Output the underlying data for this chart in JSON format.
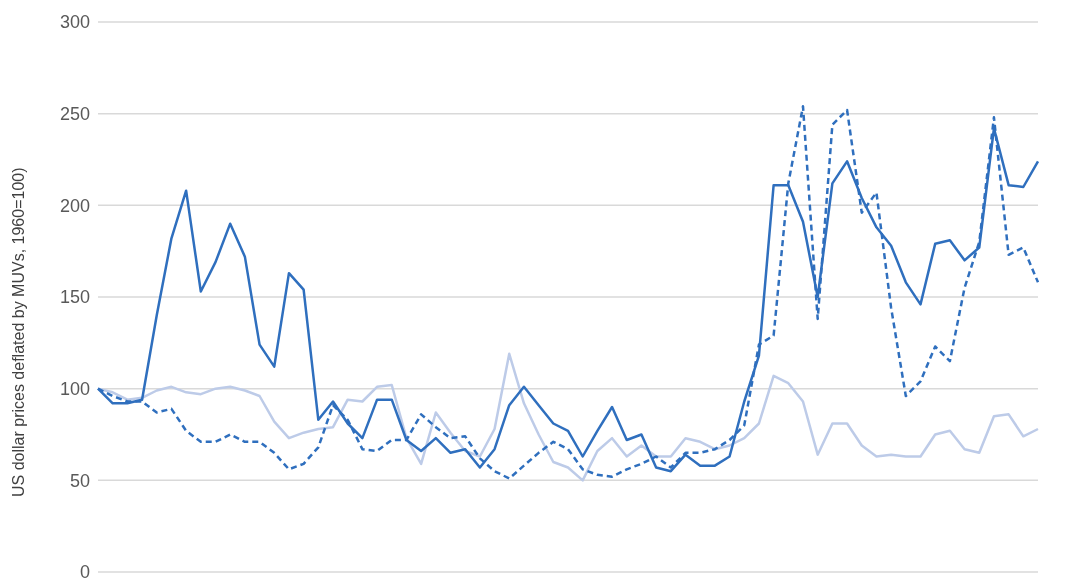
{
  "chart_data": {
    "type": "line",
    "ylabel": "US dollar prices deflated by MUVs, 1960=100)",
    "categories": [
      null,
      null,
      null,
      null,
      null,
      null,
      null,
      null,
      null,
      null,
      null,
      null,
      null,
      null,
      null,
      null,
      null,
      null,
      null,
      null,
      null,
      null,
      null,
      null,
      null,
      null,
      null,
      null,
      null,
      null,
      null,
      null,
      null,
      null,
      null,
      null,
      null,
      null,
      null,
      null,
      null,
      null,
      null,
      null,
      null,
      null,
      null,
      null,
      null,
      null,
      null,
      null,
      null,
      null,
      null,
      null,
      null,
      null,
      null,
      null,
      null,
      null,
      null,
      null,
      null
    ],
    "ylim": [
      0,
      300
    ],
    "yticks": [
      0,
      50,
      100,
      150,
      200,
      250,
      300
    ],
    "grid": "y",
    "legend": false,
    "marker": "none",
    "series": [
      {
        "color": "#bdcbe8",
        "line_style": "solid",
        "values": [
          100,
          98,
          94,
          95,
          99,
          101,
          98,
          97,
          100,
          101,
          99,
          96,
          82,
          73,
          76,
          78,
          79,
          94,
          93,
          101,
          102,
          73,
          59,
          87,
          76,
          66,
          63,
          78,
          119,
          92,
          75,
          60,
          57,
          50,
          66,
          73,
          63,
          69,
          63,
          63,
          73,
          71,
          67,
          69,
          73,
          81,
          107,
          103,
          93,
          64,
          81,
          81,
          69,
          63,
          64,
          63,
          63,
          75,
          77,
          67,
          65,
          85,
          86,
          74,
          78
        ]
      },
      {
        "color": "#2f6fbe",
        "line_style": "dashed",
        "values": [
          100,
          96,
          93,
          93,
          87,
          89,
          77,
          71,
          71,
          75,
          71,
          71,
          65,
          56,
          59,
          68,
          91,
          83,
          67,
          66,
          72,
          72,
          86,
          79,
          73,
          74,
          62,
          55,
          51,
          58,
          65,
          71,
          67,
          56,
          53,
          52,
          56,
          59,
          63,
          57,
          65,
          65,
          67,
          72,
          80,
          124,
          129,
          212,
          254,
          138,
          244,
          252,
          196,
          207,
          144,
          96,
          104,
          123,
          115,
          155,
          180,
          248,
          173,
          177,
          158
        ]
      },
      {
        "color": "#2f6fbe",
        "line_style": "solid",
        "values": [
          100,
          92,
          92,
          94,
          140,
          182,
          208,
          153,
          169,
          190,
          172,
          124,
          112,
          163,
          154,
          83,
          93,
          81,
          73,
          94,
          94,
          72,
          66,
          73,
          65,
          67,
          57,
          67,
          91,
          101,
          91,
          81,
          77,
          63,
          77,
          90,
          72,
          75,
          57,
          55,
          64,
          58,
          58,
          63,
          93,
          118,
          211,
          211,
          191,
          150,
          212,
          224,
          204,
          188,
          178,
          158,
          146,
          179,
          181,
          170,
          177,
          242,
          211,
          210,
          224
        ]
      }
    ]
  }
}
